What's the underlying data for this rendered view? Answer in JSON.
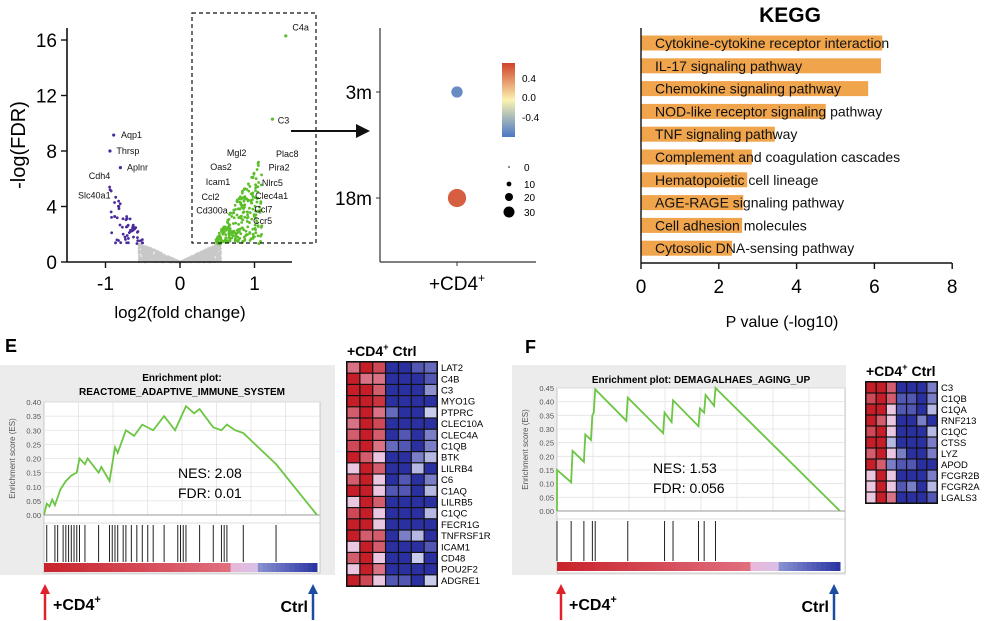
{
  "chart_data": [
    {
      "type": "scatter",
      "panel": "volcano",
      "xlabel": "log2(fold change)",
      "ylabel": "-log(FDR)",
      "xlim": [
        -1.5,
        1.5
      ],
      "ylim": [
        0,
        17
      ],
      "xticks": [
        "-1",
        "0",
        "1"
      ],
      "yticks": [
        "0",
        "4",
        "8",
        "12",
        "16"
      ],
      "colors": {
        "down": "#4b2a9c",
        "up": "#5cbf2a",
        "ns": "#c8c8c8"
      },
      "highlighted_points": [
        {
          "gene": "C4a",
          "x": 1.42,
          "y": 16.3
        },
        {
          "gene": "C3",
          "x": 1.24,
          "y": 10.3
        },
        {
          "gene": "Aqp1",
          "x": -0.89,
          "y": 9.15
        },
        {
          "gene": "Thrsp",
          "x": -0.94,
          "y": 8.0
        },
        {
          "gene": "Aplnr",
          "x": -0.8,
          "y": 6.8
        }
      ],
      "gene_labels": [
        {
          "text": "C4a",
          "x": 1.62,
          "y": 16.9
        },
        {
          "text": "C3",
          "x": 1.39,
          "y": 10.2
        },
        {
          "text": "Aqp1",
          "x": -0.65,
          "y": 9.15
        },
        {
          "text": "Thrsp",
          "x": -0.7,
          "y": 8.0
        },
        {
          "text": "Aplnr",
          "x": -0.57,
          "y": 6.8
        },
        {
          "text": "Cdh4",
          "x": -1.08,
          "y": 6.2
        },
        {
          "text": "Slc40a1",
          "x": -1.15,
          "y": 4.8
        },
        {
          "text": "Mgl2",
          "x": 0.76,
          "y": 7.85
        },
        {
          "text": "Plac8",
          "x": 1.44,
          "y": 7.8
        },
        {
          "text": "Oas2",
          "x": 0.55,
          "y": 6.85
        },
        {
          "text": "Pira2",
          "x": 1.33,
          "y": 6.8
        },
        {
          "text": "Icam1",
          "x": 0.51,
          "y": 5.75
        },
        {
          "text": "Nlrc5",
          "x": 1.24,
          "y": 5.7
        },
        {
          "text": "Ccl2",
          "x": 0.41,
          "y": 4.7
        },
        {
          "text": "Clec4a1",
          "x": 1.23,
          "y": 4.75
        },
        {
          "text": "Cd300a",
          "x": 0.43,
          "y": 3.7
        },
        {
          "text": "Ccl7",
          "x": 1.12,
          "y": 3.8
        },
        {
          "text": "Ccr5",
          "x": 1.11,
          "y": 2.95
        }
      ]
    },
    {
      "type": "scatter",
      "panel": "dotplot",
      "categories_y": [
        "3m",
        "18m"
      ],
      "categories_x": [
        "+CD4+"
      ],
      "xlabel_main": "+CD4",
      "xlabel_sup": "+",
      "points": [
        {
          "y": "3m",
          "x": "+CD4+",
          "color_value": -0.5,
          "size_value": 8
        },
        {
          "y": "18m",
          "x": "+CD4+",
          "color_value": 0.5,
          "size_value": 30
        }
      ],
      "colorbar": {
        "ticks": [
          "0.4",
          "0.0",
          "-0.4"
        ],
        "range": [
          -0.6,
          0.6
        ],
        "low": "#4a77c4",
        "mid": "#fbf3b0",
        "high": "#d0422b"
      },
      "size_legend": {
        "ticks": [
          "0",
          "10",
          "20",
          "30"
        ]
      }
    },
    {
      "type": "bar",
      "panel": "kegg",
      "title": "KEGG",
      "xlabel": "P value (-log10)",
      "xlim": [
        0,
        8
      ],
      "xticks": [
        "0",
        "2",
        "4",
        "6",
        "8"
      ],
      "bar_color": "#f0a54c",
      "categories": [
        "Cytokine-cytokine receptor interaction",
        "IL-17 signaling pathway",
        "Chemokine signaling pathway",
        "NOD-like receptor signaling pathway",
        "TNF signaling pathway",
        "Complement and coagulation cascades",
        "Hematopoietic cell lineage",
        "AGE-RAGE signaling pathway",
        "Cell adhesion molecules",
        "Cytosolic DNA-sensing pathway"
      ],
      "values": [
        6.2,
        6.17,
        5.84,
        4.75,
        3.44,
        2.85,
        2.73,
        2.63,
        2.6,
        2.34
      ]
    },
    {
      "type": "line",
      "panel": "E",
      "panel_label": "E",
      "title_line1": "Enrichment plot:",
      "title_line2": "REACTOME_ADAPTIVE_IMMUNE_SYSTEM",
      "ylabel": "Enrichment score (ES)",
      "ylim": [
        0,
        0.4
      ],
      "yticks": [
        "0.00",
        "0.05",
        "0.10",
        "0.15",
        "0.20",
        "0.25",
        "0.30",
        "0.35",
        "0.40"
      ],
      "nes_text": "NES: 2.08",
      "fdr_text": "FDR: 0.01",
      "left_label": "+CD4",
      "left_sup": "+",
      "right_label": "Ctrl",
      "es_curve": [
        [
          0,
          0
        ],
        [
          0.01,
          0.04
        ],
        [
          0.02,
          0.03
        ],
        [
          0.03,
          0.055
        ],
        [
          0.04,
          0.035
        ],
        [
          0.06,
          0.09
        ],
        [
          0.08,
          0.12
        ],
        [
          0.1,
          0.14
        ],
        [
          0.12,
          0.15
        ],
        [
          0.13,
          0.2
        ],
        [
          0.15,
          0.18
        ],
        [
          0.16,
          0.2
        ],
        [
          0.2,
          0.15
        ],
        [
          0.21,
          0.17
        ],
        [
          0.24,
          0.12
        ],
        [
          0.26,
          0.24
        ],
        [
          0.27,
          0.22
        ],
        [
          0.3,
          0.3
        ],
        [
          0.33,
          0.28
        ],
        [
          0.36,
          0.32
        ],
        [
          0.4,
          0.3
        ],
        [
          0.44,
          0.35
        ],
        [
          0.48,
          0.3
        ],
        [
          0.52,
          0.385
        ],
        [
          0.55,
          0.36
        ],
        [
          0.57,
          0.375
        ],
        [
          0.62,
          0.31
        ],
        [
          0.65,
          0.3
        ],
        [
          0.67,
          0.32
        ],
        [
          0.7,
          0.3
        ],
        [
          0.73,
          0.29
        ],
        [
          0.85,
          0.18
        ],
        [
          1.0,
          0.0
        ]
      ],
      "hits": [
        0.01,
        0.04,
        0.05,
        0.07,
        0.08,
        0.09,
        0.1,
        0.11,
        0.12,
        0.13,
        0.15,
        0.2,
        0.24,
        0.25,
        0.26,
        0.27,
        0.29,
        0.3,
        0.32,
        0.34,
        0.36,
        0.38,
        0.4,
        0.44,
        0.49,
        0.5,
        0.51,
        0.52,
        0.57,
        0.62,
        0.65,
        0.66,
        0.67,
        0.73,
        0.85
      ],
      "heatmap": {
        "header_main": "+CD4",
        "header_sup": "+",
        "header_ctrl": "Ctrl",
        "genes": [
          "LAT2",
          "C4B",
          "C3",
          "MYO1G",
          "PTPRC",
          "CLEC10A",
          "CLEC4A",
          "C1QB",
          "BTK",
          "LILRB4",
          "C6",
          "C1AQ",
          "LILRB5",
          "C1QC",
          "FECR1G",
          "TNFRSF1R",
          "ICAM1",
          "CD48",
          "POU2F2",
          "ADGRE1"
        ],
        "values": [
          [
            0.6,
            1,
            0.8,
            -1,
            -1,
            -0.8,
            -0.7
          ],
          [
            1,
            0.6,
            0.6,
            -1,
            -1,
            -1,
            -0.8
          ],
          [
            1,
            1,
            0.7,
            -1,
            -1,
            -1,
            -0.5
          ],
          [
            1,
            1,
            0.9,
            -1,
            -1,
            -1,
            -1
          ],
          [
            0.7,
            1,
            0.6,
            -0.7,
            -1,
            -1,
            -0.2
          ],
          [
            0.6,
            1,
            0.8,
            -1,
            -1,
            -1,
            -1
          ],
          [
            0.7,
            1,
            0.7,
            -1,
            -0.8,
            -1,
            -0.6
          ],
          [
            0.8,
            1,
            0.6,
            -0.7,
            -0.8,
            -1,
            -0.6
          ],
          [
            1,
            0.7,
            0.2,
            -1,
            -1,
            -0.6,
            -0.3
          ],
          [
            0.2,
            1,
            0.7,
            -1,
            -1,
            -0.3,
            -1
          ],
          [
            0.7,
            1,
            0.2,
            -1,
            -0.8,
            -1,
            -0.6
          ],
          [
            1,
            1,
            0.2,
            -0.8,
            -0.8,
            -1,
            -0.3
          ],
          [
            0.2,
            1,
            0.7,
            -1,
            -1,
            -1,
            -1
          ],
          [
            0.8,
            1,
            0.2,
            -1,
            -1,
            -1,
            -0.3
          ],
          [
            1,
            1,
            0.2,
            -1,
            -1,
            -1,
            -1
          ],
          [
            1,
            0.7,
            0.7,
            -1,
            -0.6,
            -0.3,
            -1
          ],
          [
            0.2,
            1,
            0.7,
            -1,
            -1,
            -1,
            -0.8
          ],
          [
            0.7,
            1,
            0.2,
            -1,
            -1,
            -0.2,
            -1
          ],
          [
            0.2,
            1,
            0.6,
            -1,
            -1,
            -1,
            -1
          ],
          [
            1,
            0.8,
            0.2,
            -0.8,
            -0.8,
            -1,
            -0.2
          ]
        ]
      }
    },
    {
      "type": "line",
      "panel": "F",
      "panel_label": "F",
      "title_line1": "Enrichment plot: DEMAGALHAES_AGING_UP",
      "ylabel": "Enrichment score (ES)",
      "ylim": [
        0,
        0.45
      ],
      "yticks": [
        "0.00",
        "0.05",
        "0.10",
        "0.15",
        "0.20",
        "0.25",
        "0.30",
        "0.35",
        "0.40",
        "0.45"
      ],
      "nes_text": "NES: 1.53",
      "fdr_text": "FDR: 0.056",
      "left_label": "+CD4",
      "left_sup": "+",
      "right_label": "Ctrl",
      "es_curve": [
        [
          0,
          0
        ],
        [
          0,
          0.15
        ],
        [
          0.05,
          0.105
        ],
        [
          0.055,
          0.22
        ],
        [
          0.095,
          0.18
        ],
        [
          0.1,
          0.28
        ],
        [
          0.12,
          0.26
        ],
        [
          0.125,
          0.35
        ],
        [
          0.13,
          0.36
        ],
        [
          0.135,
          0.445
        ],
        [
          0.245,
          0.33
        ],
        [
          0.25,
          0.415
        ],
        [
          0.375,
          0.285
        ],
        [
          0.38,
          0.36
        ],
        [
          0.405,
          0.325
        ],
        [
          0.41,
          0.405
        ],
        [
          0.5,
          0.31
        ],
        [
          0.505,
          0.375
        ],
        [
          0.52,
          0.36
        ],
        [
          0.525,
          0.425
        ],
        [
          0.555,
          0.385
        ],
        [
          0.56,
          0.45
        ],
        [
          1.0,
          0.0
        ]
      ],
      "hits": [
        0.0,
        0.05,
        0.095,
        0.125,
        0.135,
        0.25,
        0.38,
        0.41,
        0.5,
        0.52,
        0.56
      ],
      "heatmap": {
        "header_main": "+CD4",
        "header_sup": "+",
        "header_ctrl": "Ctrl",
        "genes": [
          "C3",
          "C1QB",
          "C1QA",
          "RNF213",
          "C1QC",
          "CTSS",
          "LYZ",
          "APOD",
          "FCGR2B",
          "FCGR2A",
          "LGALS3"
        ],
        "values": [
          [
            1,
            1,
            0.7,
            -1,
            -1,
            -1,
            -0.6
          ],
          [
            0.8,
            1,
            0.7,
            -0.8,
            -0.8,
            -1,
            -0.6
          ],
          [
            1,
            1,
            0.2,
            -0.8,
            -0.8,
            -1,
            -0.3
          ],
          [
            1,
            0.7,
            0.2,
            -1,
            -1,
            -0.6,
            -1
          ],
          [
            0.8,
            1,
            0.2,
            -1,
            -1,
            -1,
            -0.3
          ],
          [
            1,
            1,
            -0.3,
            -1,
            -1,
            -1,
            -0.6
          ],
          [
            0.7,
            1,
            0.2,
            -0.6,
            -1,
            -1,
            -0.6
          ],
          [
            1,
            0.7,
            -0.6,
            -0.8,
            -0.8,
            -1,
            -1
          ],
          [
            0.2,
            1,
            0.2,
            -1,
            -1,
            -1,
            -0.6
          ],
          [
            0.2,
            1,
            0.2,
            -0.8,
            -0.6,
            -1,
            -0.3
          ],
          [
            0.2,
            1,
            0.6,
            -1,
            -1,
            -1,
            -0.8
          ]
        ]
      }
    }
  ]
}
